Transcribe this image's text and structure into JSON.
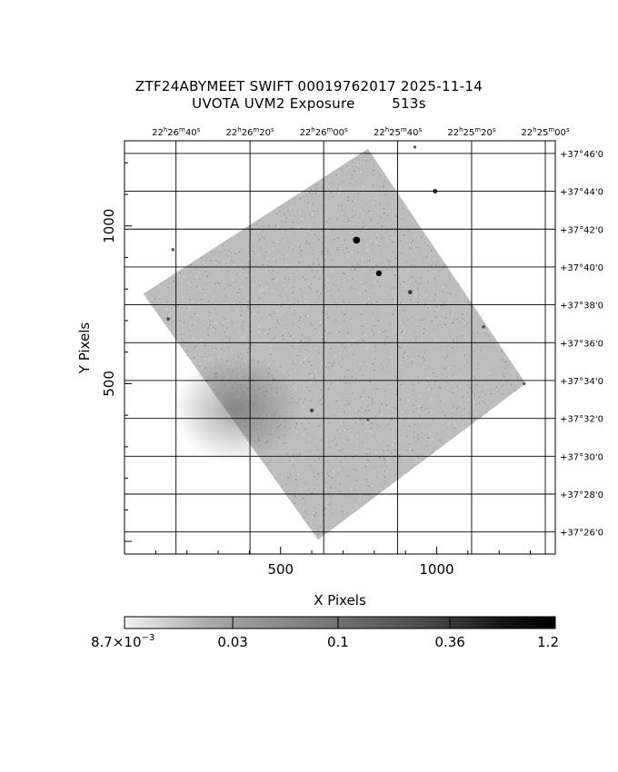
{
  "header": {
    "title_line1": "ZTF24ABYMEET SWIFT 00019762017 2025-11-14",
    "title_line2": "UVOTA UVM2 Exposure        513s"
  },
  "axes": {
    "xlabel": "X Pixels",
    "ylabel": "Y Pixels"
  },
  "chart_data": {
    "type": "heatmap",
    "xlabel": "X Pixels",
    "ylabel": "Y Pixels",
    "xlim": [
      0,
      1380
    ],
    "ylim": [
      -40,
      1270
    ],
    "x_ticks": [
      500,
      1000
    ],
    "y_ticks": [
      500,
      1000
    ],
    "ra_ticks": [
      {
        "h": "22",
        "m": "26",
        "s": "40",
        "x": 165
      },
      {
        "h": "22",
        "m": "26",
        "s": "20",
        "x": 402
      },
      {
        "h": "22",
        "m": "26",
        "s": "00",
        "x": 638
      },
      {
        "h": "22",
        "m": "25",
        "s": "40",
        "x": 875
      },
      {
        "h": "22",
        "m": "25",
        "s": "20",
        "x": 1112
      },
      {
        "h": "22",
        "m": "25",
        "s": "00",
        "x": 1348
      }
    ],
    "dec_ticks": [
      {
        "label": "+37°46'0",
        "y": 1230
      },
      {
        "label": "+37°44'0",
        "y": 1110
      },
      {
        "label": "+37°42'0",
        "y": 990
      },
      {
        "label": "+37°40'0",
        "y": 870
      },
      {
        "label": "+37°38'0",
        "y": 750
      },
      {
        "label": "+37°36'0",
        "y": 630
      },
      {
        "label": "+37°34'0",
        "y": 510
      },
      {
        "label": "+37°32'0",
        "y": 390
      },
      {
        "label": "+37°30'0",
        "y": 270
      },
      {
        "label": "+37°28'0",
        "y": 150
      },
      {
        "label": "+37°26'0",
        "y": 30
      }
    ],
    "footprint": [
      {
        "x": 60,
        "y": 785
      },
      {
        "x": 780,
        "y": 1245
      },
      {
        "x": 1285,
        "y": 500
      },
      {
        "x": 620,
        "y": 5
      }
    ],
    "sources": [
      {
        "x": 743,
        "y": 955,
        "v": 1.2
      },
      {
        "x": 815,
        "y": 850,
        "v": 0.9
      },
      {
        "x": 995,
        "y": 1110,
        "v": 0.6
      },
      {
        "x": 915,
        "y": 790,
        "v": 0.5
      },
      {
        "x": 600,
        "y": 415,
        "v": 0.4
      },
      {
        "x": 1150,
        "y": 680,
        "v": 0.3
      },
      {
        "x": 140,
        "y": 705,
        "v": 0.3
      },
      {
        "x": 155,
        "y": 925,
        "v": 0.25
      },
      {
        "x": 1280,
        "y": 500,
        "v": 0.2
      },
      {
        "x": 930,
        "y": 1250,
        "v": 0.2
      },
      {
        "x": 780,
        "y": 385,
        "v": 0.15
      }
    ],
    "colorbar": {
      "min": 0.0087,
      "max": 1.2,
      "scale": "log",
      "ticks": [
        {
          "label": "8.7×10",
          "exp": "−3",
          "value": 0.0087
        },
        {
          "label": "0.03",
          "value": 0.03
        },
        {
          "label": "0.1",
          "value": 0.1
        },
        {
          "label": "0.36",
          "value": 0.36
        },
        {
          "label": "1.2",
          "value": 1.2
        }
      ]
    },
    "colors": {
      "background": "#ffffff",
      "ink": "#000000",
      "noise": "#a8a8a8"
    }
  }
}
